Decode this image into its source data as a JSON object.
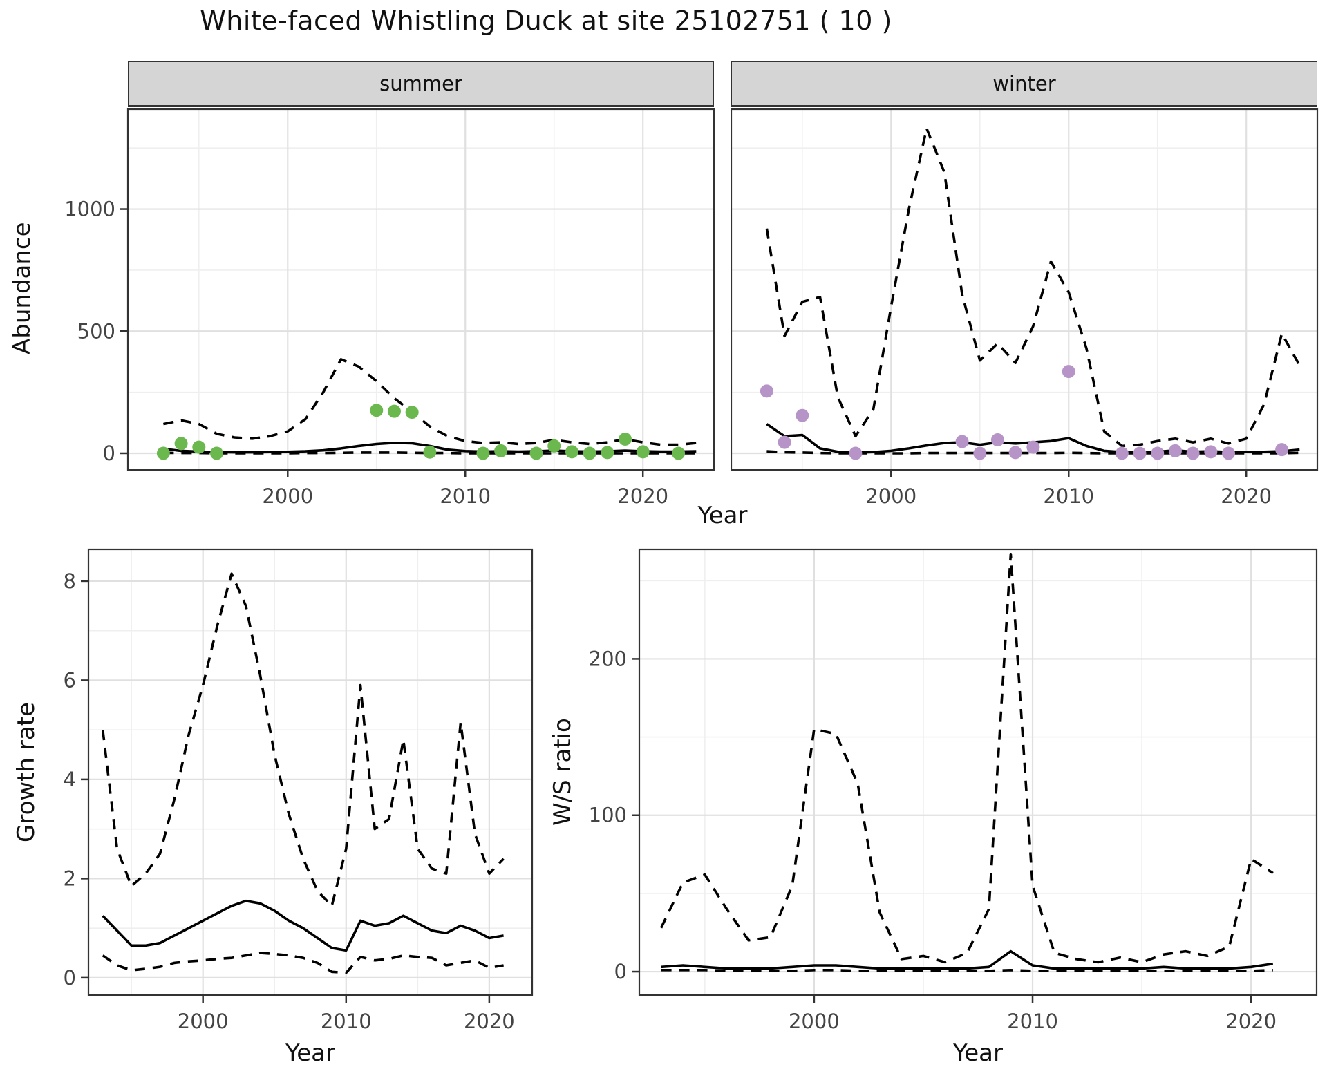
{
  "title": "White-faced Whistling Duck at site 25102751 ( 10 )",
  "colors": {
    "line": "#000000",
    "summer_points": "#6ab84e",
    "winter_points": "#b794c7",
    "strip_bg": "#d5d5d5",
    "grid_major": "#e0e0e0",
    "grid_minor": "#efefef",
    "panel_border": "#333333",
    "tick_text": "#444444"
  },
  "labels": {
    "y_top": "Abundance",
    "x_top": "Year",
    "y_growth": "Growth rate",
    "x_growth": "Year",
    "y_ws": "W/S ratio",
    "x_ws": "Year"
  },
  "chart_data": [
    {
      "key": "summer_abundance",
      "type": "line",
      "facet": "summer",
      "ylabel": "Abundance",
      "xlabel": "Year",
      "x_range": [
        1991,
        2024
      ],
      "y_range": [
        -68,
        1409
      ],
      "x_ticks": [
        2000,
        2010,
        2020
      ],
      "y_ticks": [
        0,
        500,
        1000
      ],
      "show_y_tick_labels": true,
      "legend": "none",
      "grid": true,
      "x": [
        1993,
        1994,
        1995,
        1996,
        1997,
        1998,
        1999,
        2000,
        2001,
        2002,
        2003,
        2004,
        2005,
        2006,
        2007,
        2008,
        2009,
        2010,
        2011,
        2012,
        2013,
        2014,
        2015,
        2016,
        2017,
        2018,
        2019,
        2020,
        2021,
        2022,
        2023
      ],
      "series": [
        {
          "name": "upper_ci",
          "style": "dashed",
          "values": [
            120,
            135,
            120,
            80,
            65,
            60,
            70,
            90,
            140,
            250,
            385,
            355,
            295,
            225,
            170,
            110,
            70,
            50,
            42,
            45,
            38,
            42,
            55,
            45,
            38,
            45,
            58,
            45,
            35,
            35,
            42
          ]
        },
        {
          "name": "median",
          "style": "solid",
          "values": [
            18,
            10,
            7,
            5,
            4,
            4,
            5,
            6,
            8,
            12,
            20,
            30,
            38,
            43,
            41,
            30,
            15,
            9,
            7,
            8,
            7,
            8,
            11,
            8,
            7,
            8,
            11,
            8,
            7,
            7,
            8
          ]
        },
        {
          "name": "lower_ci",
          "style": "dashed",
          "values": [
            2,
            1,
            1,
            0,
            0,
            0,
            0,
            0,
            1,
            1,
            2,
            3,
            3,
            3,
            2,
            1,
            1,
            0,
            0,
            0,
            0,
            0,
            0,
            0,
            0,
            0,
            0,
            0,
            0,
            0,
            0
          ]
        }
      ],
      "points": {
        "name": "observed_counts",
        "color": "#6ab84e",
        "data": [
          [
            1993,
            0
          ],
          [
            1994,
            40
          ],
          [
            1995,
            25
          ],
          [
            1996,
            0
          ],
          [
            2005,
            176
          ],
          [
            2006,
            172
          ],
          [
            2007,
            168
          ],
          [
            2008,
            5
          ],
          [
            2011,
            0
          ],
          [
            2012,
            10
          ],
          [
            2014,
            0
          ],
          [
            2015,
            30
          ],
          [
            2016,
            6
          ],
          [
            2017,
            0
          ],
          [
            2018,
            3
          ],
          [
            2019,
            58
          ],
          [
            2020,
            6
          ],
          [
            2022,
            0
          ]
        ]
      }
    },
    {
      "key": "winter_abundance",
      "type": "line",
      "facet": "winter",
      "ylabel": "Abundance",
      "xlabel": "Year",
      "x_range": [
        1991,
        2024
      ],
      "y_range": [
        -68,
        1409
      ],
      "x_ticks": [
        2000,
        2010,
        2020
      ],
      "y_ticks": [
        0,
        500,
        1000
      ],
      "show_y_tick_labels": false,
      "legend": "none",
      "grid": true,
      "x": [
        1993,
        1994,
        1995,
        1996,
        1997,
        1998,
        1999,
        2000,
        2001,
        2002,
        2003,
        2004,
        2005,
        2006,
        2007,
        2008,
        2009,
        2010,
        2011,
        2012,
        2013,
        2014,
        2015,
        2016,
        2017,
        2018,
        2019,
        2020,
        2021,
        2022,
        2023
      ],
      "series": [
        {
          "name": "upper_ci",
          "style": "dashed",
          "values": [
            920,
            480,
            620,
            640,
            230,
            70,
            180,
            600,
            1000,
            1330,
            1150,
            650,
            380,
            450,
            370,
            520,
            785,
            660,
            430,
            90,
            30,
            35,
            50,
            60,
            45,
            60,
            40,
            60,
            200,
            490,
            360
          ]
        },
        {
          "name": "median",
          "style": "solid",
          "values": [
            120,
            70,
            75,
            20,
            6,
            3,
            5,
            10,
            20,
            32,
            42,
            45,
            35,
            45,
            40,
            45,
            50,
            62,
            30,
            10,
            5,
            5,
            6,
            12,
            6,
            8,
            5,
            5,
            6,
            8,
            15
          ]
        },
        {
          "name": "lower_ci",
          "style": "dashed",
          "values": [
            8,
            4,
            3,
            1,
            0,
            0,
            0,
            0,
            0,
            1,
            1,
            1,
            1,
            1,
            1,
            1,
            1,
            2,
            1,
            0,
            0,
            0,
            0,
            0,
            0,
            0,
            0,
            0,
            0,
            0,
            2
          ]
        }
      ],
      "points": {
        "name": "observed_counts",
        "color": "#b794c7",
        "data": [
          [
            1993,
            255
          ],
          [
            1994,
            45
          ],
          [
            1995,
            155
          ],
          [
            1998,
            0
          ],
          [
            2004,
            48
          ],
          [
            2005,
            0
          ],
          [
            2006,
            55
          ],
          [
            2007,
            3
          ],
          [
            2008,
            25
          ],
          [
            2010,
            335
          ],
          [
            2013,
            0
          ],
          [
            2014,
            0
          ],
          [
            2015,
            0
          ],
          [
            2016,
            10
          ],
          [
            2017,
            0
          ],
          [
            2018,
            6
          ],
          [
            2019,
            0
          ],
          [
            2022,
            15
          ]
        ]
      }
    },
    {
      "key": "growth_rate",
      "type": "line",
      "facet": null,
      "ylabel": "Growth rate",
      "xlabel": "Year",
      "x_range": [
        1992,
        2023
      ],
      "y_range": [
        -0.35,
        8.64
      ],
      "x_ticks": [
        2000,
        2010,
        2020
      ],
      "y_ticks": [
        0,
        2,
        4,
        6,
        8
      ],
      "show_y_tick_labels": true,
      "legend": "none",
      "grid": true,
      "x": [
        1993,
        1994,
        1995,
        1996,
        1997,
        1998,
        1999,
        2000,
        2001,
        2002,
        2003,
        2004,
        2005,
        2006,
        2007,
        2008,
        2009,
        2010,
        2011,
        2012,
        2013,
        2014,
        2015,
        2016,
        2017,
        2018,
        2019,
        2020,
        2021
      ],
      "series": [
        {
          "name": "upper_ci",
          "style": "dashed",
          "values": [
            5.0,
            2.6,
            1.85,
            2.1,
            2.5,
            3.6,
            4.9,
            5.9,
            7.1,
            8.15,
            7.5,
            6.1,
            4.5,
            3.3,
            2.4,
            1.75,
            1.45,
            2.6,
            5.9,
            3.0,
            3.2,
            4.8,
            2.6,
            2.2,
            2.1,
            5.15,
            2.9,
            2.1,
            2.4
          ]
        },
        {
          "name": "median",
          "style": "solid",
          "values": [
            1.25,
            0.95,
            0.65,
            0.65,
            0.7,
            0.85,
            1.0,
            1.15,
            1.3,
            1.45,
            1.55,
            1.5,
            1.35,
            1.15,
            1.0,
            0.8,
            0.6,
            0.55,
            1.15,
            1.05,
            1.1,
            1.25,
            1.1,
            0.95,
            0.9,
            1.05,
            0.95,
            0.8,
            0.85
          ]
        },
        {
          "name": "lower_ci",
          "style": "dashed",
          "values": [
            0.45,
            0.25,
            0.15,
            0.18,
            0.22,
            0.3,
            0.33,
            0.35,
            0.38,
            0.4,
            0.45,
            0.5,
            0.48,
            0.45,
            0.4,
            0.3,
            0.12,
            0.1,
            0.42,
            0.35,
            0.38,
            0.45,
            0.42,
            0.4,
            0.25,
            0.3,
            0.35,
            0.2,
            0.25
          ]
        }
      ],
      "points": null
    },
    {
      "key": "ws_ratio",
      "type": "line",
      "facet": null,
      "ylabel": "W/S ratio",
      "xlabel": "Year",
      "x_range": [
        1992,
        2023
      ],
      "y_range": [
        -15,
        270
      ],
      "x_ticks": [
        2000,
        2010,
        2020
      ],
      "y_ticks": [
        0,
        100,
        200
      ],
      "show_y_tick_labels": true,
      "legend": "none",
      "grid": true,
      "x": [
        1993,
        1994,
        1995,
        1996,
        1997,
        1998,
        1999,
        2000,
        2001,
        2002,
        2003,
        2004,
        2005,
        2006,
        2007,
        2008,
        2009,
        2010,
        2011,
        2012,
        2013,
        2014,
        2015,
        2016,
        2017,
        2018,
        2019,
        2020,
        2021
      ],
      "series": [
        {
          "name": "upper_ci",
          "style": "dashed",
          "values": [
            28,
            57,
            62,
            40,
            20,
            22,
            55,
            155,
            152,
            120,
            38,
            8,
            10,
            6,
            12,
            40,
            267,
            55,
            12,
            8,
            6,
            9,
            6,
            11,
            13,
            10,
            16,
            72,
            63
          ]
        },
        {
          "name": "median",
          "style": "solid",
          "values": [
            3,
            4,
            3,
            2,
            2,
            2,
            3,
            4,
            4,
            3,
            2,
            2,
            2,
            2,
            2,
            3,
            13,
            4,
            2,
            2,
            2,
            2,
            2,
            3,
            2,
            2,
            2,
            3,
            5
          ]
        },
        {
          "name": "lower_ci",
          "style": "dashed",
          "values": [
            1,
            1,
            1,
            0.5,
            0.5,
            0.5,
            0.5,
            1,
            1,
            0.5,
            0.5,
            0.5,
            0.5,
            0.5,
            0.5,
            0.5,
            1,
            0.5,
            0.5,
            0.5,
            0.5,
            0.5,
            0.5,
            0.5,
            0.5,
            0.5,
            0.5,
            0.5,
            1
          ]
        }
      ],
      "points": null
    }
  ]
}
